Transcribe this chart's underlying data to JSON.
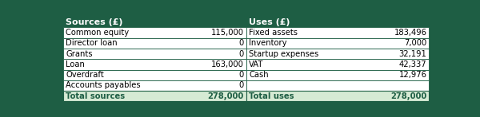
{
  "header_bg": "#1e5e44",
  "header_text_color": "#ffffff",
  "row_bg": "#ffffff",
  "total_bg": "#d6ead4",
  "total_text_color": "#1e5e44",
  "border_color": "#1e5e44",
  "header_left": "Sources (£)",
  "header_right": "Uses (£)",
  "sources": [
    [
      "Common equity",
      "115,000"
    ],
    [
      "Director loan",
      "0"
    ],
    [
      "Grants",
      "0"
    ],
    [
      "Loan",
      "163,000"
    ],
    [
      "Overdraft",
      "0"
    ],
    [
      "Accounts payables",
      "0"
    ]
  ],
  "uses": [
    [
      "Fixed assets",
      "183,496"
    ],
    [
      "Inventory",
      "7,000"
    ],
    [
      "Startup expenses",
      "32,191"
    ],
    [
      "VAT",
      "42,337"
    ],
    [
      "Cash",
      "12,976"
    ],
    [
      "",
      ""
    ]
  ],
  "total_sources_label": "Total sources",
  "total_sources_value": "278,000",
  "total_uses_label": "Total uses",
  "total_uses_value": "278,000",
  "figwidth": 6.0,
  "figheight": 1.47,
  "dpi": 100,
  "font_size": 7.2,
  "header_font_size": 8.0
}
